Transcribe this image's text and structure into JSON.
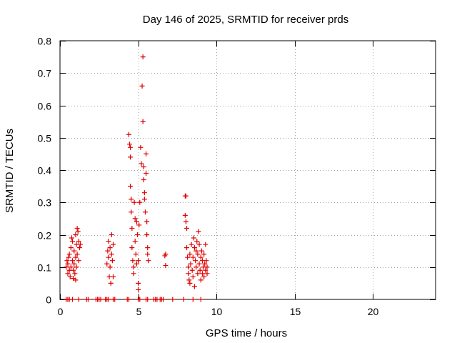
{
  "chart_data": {
    "type": "scatter",
    "title": "Day 146 of 2025, SRMTID for receiver prds",
    "xlabel": "GPS time / hours",
    "ylabel": "SRMTID / TECUs",
    "xlim": [
      0,
      24
    ],
    "ylim": [
      0,
      0.8
    ],
    "xticks": [
      0,
      5,
      10,
      15,
      20
    ],
    "xtick_labels": [
      "0",
      "5",
      "10",
      "15",
      "20"
    ],
    "yticks": [
      0,
      0.1,
      0.2,
      0.3,
      0.4,
      0.5,
      0.6,
      0.7,
      0.8
    ],
    "ytick_labels": [
      "0",
      "0.1",
      "0.2",
      "0.3",
      "0.4",
      "0.5",
      "0.6",
      "0.7",
      "0.8"
    ],
    "grid": true,
    "marker": "+",
    "marker_color": "#e00000",
    "series": [
      {
        "name": "SRMTID",
        "points": [
          [
            0.4,
            0.1
          ],
          [
            0.45,
            0.12
          ],
          [
            0.5,
            0.08
          ],
          [
            0.5,
            0.11
          ],
          [
            0.55,
            0.13
          ],
          [
            0.6,
            0.09
          ],
          [
            0.6,
            0.14
          ],
          [
            0.65,
            0.07
          ],
          [
            0.7,
            0.1
          ],
          [
            0.7,
            0.16
          ],
          [
            0.75,
            0.19
          ],
          [
            0.8,
            0.12
          ],
          [
            0.8,
            0.18
          ],
          [
            0.85,
            0.09
          ],
          [
            0.85,
            0.065
          ],
          [
            0.9,
            0.11
          ],
          [
            0.9,
            0.15
          ],
          [
            0.95,
            0.08
          ],
          [
            1.0,
            0.2
          ],
          [
            1.0,
            0.13
          ],
          [
            1.0,
            0.06
          ],
          [
            1.05,
            0.1
          ],
          [
            1.05,
            0.17
          ],
          [
            1.1,
            0.22
          ],
          [
            1.1,
            0.14
          ],
          [
            1.15,
            0.21
          ],
          [
            1.2,
            0.12
          ],
          [
            1.2,
            0.18
          ],
          [
            1.25,
            0.16
          ],
          [
            1.3,
            0.17
          ],
          [
            3.0,
            0.11
          ],
          [
            3.05,
            0.15
          ],
          [
            3.1,
            0.13
          ],
          [
            3.1,
            0.18
          ],
          [
            3.15,
            0.07
          ],
          [
            3.2,
            0.1
          ],
          [
            3.2,
            0.16
          ],
          [
            3.25,
            0.05
          ],
          [
            3.3,
            0.2
          ],
          [
            3.3,
            0.14
          ],
          [
            3.35,
            0.12
          ],
          [
            3.4,
            0.07
          ],
          [
            3.4,
            0.17
          ],
          [
            4.4,
            0.51
          ],
          [
            4.45,
            0.48
          ],
          [
            4.5,
            0.47
          ],
          [
            4.5,
            0.44
          ],
          [
            4.5,
            0.35
          ],
          [
            4.55,
            0.31
          ],
          [
            4.55,
            0.27
          ],
          [
            4.6,
            0.22
          ],
          [
            4.6,
            0.16
          ],
          [
            4.65,
            0.12
          ],
          [
            4.7,
            0.1
          ],
          [
            4.7,
            0.08
          ],
          [
            4.75,
            0.3
          ],
          [
            4.8,
            0.25
          ],
          [
            4.8,
            0.18
          ],
          [
            4.85,
            0.14
          ],
          [
            4.9,
            0.11
          ],
          [
            4.9,
            0.24
          ],
          [
            4.95,
            0.2
          ],
          [
            5.0,
            0.05
          ],
          [
            5.0,
            0.03
          ],
          [
            5.0,
            0.12
          ],
          [
            5.05,
            0.23
          ],
          [
            5.1,
            0.3
          ],
          [
            5.15,
            0.47
          ],
          [
            5.2,
            0.42
          ],
          [
            5.25,
            0.66
          ],
          [
            5.3,
            0.75
          ],
          [
            5.3,
            0.55
          ],
          [
            5.35,
            0.41
          ],
          [
            5.35,
            0.37
          ],
          [
            5.4,
            0.33
          ],
          [
            5.4,
            0.31
          ],
          [
            5.45,
            0.27
          ],
          [
            5.5,
            0.45
          ],
          [
            5.5,
            0.39
          ],
          [
            5.55,
            0.24
          ],
          [
            5.55,
            0.2
          ],
          [
            5.6,
            0.16
          ],
          [
            5.6,
            0.14
          ],
          [
            5.65,
            0.12
          ],
          [
            6.7,
            0.135
          ],
          [
            6.75,
            0.14
          ],
          [
            6.75,
            0.105
          ],
          [
            8.0,
            0.32
          ],
          [
            8.05,
            0.32
          ],
          [
            8.0,
            0.26
          ],
          [
            8.05,
            0.24
          ],
          [
            8.1,
            0.22
          ],
          [
            8.1,
            0.16
          ],
          [
            8.15,
            0.13
          ],
          [
            8.2,
            0.1
          ],
          [
            8.2,
            0.08
          ],
          [
            8.25,
            0.06
          ],
          [
            8.3,
            0.05
          ],
          [
            8.3,
            0.14
          ],
          [
            8.35,
            0.11
          ],
          [
            8.4,
            0.17
          ],
          [
            8.45,
            0.09
          ],
          [
            8.5,
            0.07
          ],
          [
            8.5,
            0.13
          ],
          [
            8.55,
            0.19
          ],
          [
            8.6,
            0.16
          ],
          [
            8.6,
            0.04
          ],
          [
            8.65,
            0.12
          ],
          [
            8.7,
            0.15
          ],
          [
            8.7,
            0.1
          ],
          [
            8.75,
            0.18
          ],
          [
            8.8,
            0.08
          ],
          [
            8.8,
            0.14
          ],
          [
            8.85,
            0.21
          ],
          [
            8.9,
            0.11
          ],
          [
            8.9,
            0.17
          ],
          [
            8.95,
            0.09
          ],
          [
            9.0,
            0.13
          ],
          [
            9.0,
            0.06
          ],
          [
            9.05,
            0.15
          ],
          [
            9.1,
            0.12
          ],
          [
            9.1,
            0.08
          ],
          [
            9.15,
            0.1
          ],
          [
            9.2,
            0.14
          ],
          [
            9.2,
            0.07
          ],
          [
            9.25,
            0.11
          ],
          [
            9.3,
            0.09
          ],
          [
            9.3,
            0.17
          ],
          [
            9.35,
            0.12
          ],
          [
            9.4,
            0.1
          ],
          [
            9.4,
            0.08
          ],
          [
            0.4,
            0.0
          ],
          [
            0.5,
            0.0
          ],
          [
            0.6,
            0.0
          ],
          [
            0.8,
            0.0
          ],
          [
            1.2,
            0.0
          ],
          [
            1.7,
            0.0
          ],
          [
            1.8,
            0.0
          ],
          [
            2.3,
            0.0
          ],
          [
            2.4,
            0.0
          ],
          [
            2.5,
            0.0
          ],
          [
            2.6,
            0.0
          ],
          [
            2.9,
            0.0
          ],
          [
            3.0,
            0.0
          ],
          [
            3.1,
            0.0
          ],
          [
            3.4,
            0.0
          ],
          [
            3.5,
            0.0
          ],
          [
            4.3,
            0.0
          ],
          [
            4.4,
            0.0
          ],
          [
            5.0,
            0.0
          ],
          [
            5.1,
            0.0
          ],
          [
            5.5,
            0.0
          ],
          [
            5.6,
            0.0
          ],
          [
            6.0,
            0.0
          ],
          [
            6.1,
            0.0
          ],
          [
            6.2,
            0.0
          ],
          [
            6.4,
            0.0
          ],
          [
            6.5,
            0.0
          ],
          [
            6.6,
            0.0
          ],
          [
            7.2,
            0.0
          ],
          [
            7.9,
            0.0
          ],
          [
            8.5,
            0.0
          ],
          [
            9.0,
            0.0
          ]
        ]
      }
    ]
  }
}
